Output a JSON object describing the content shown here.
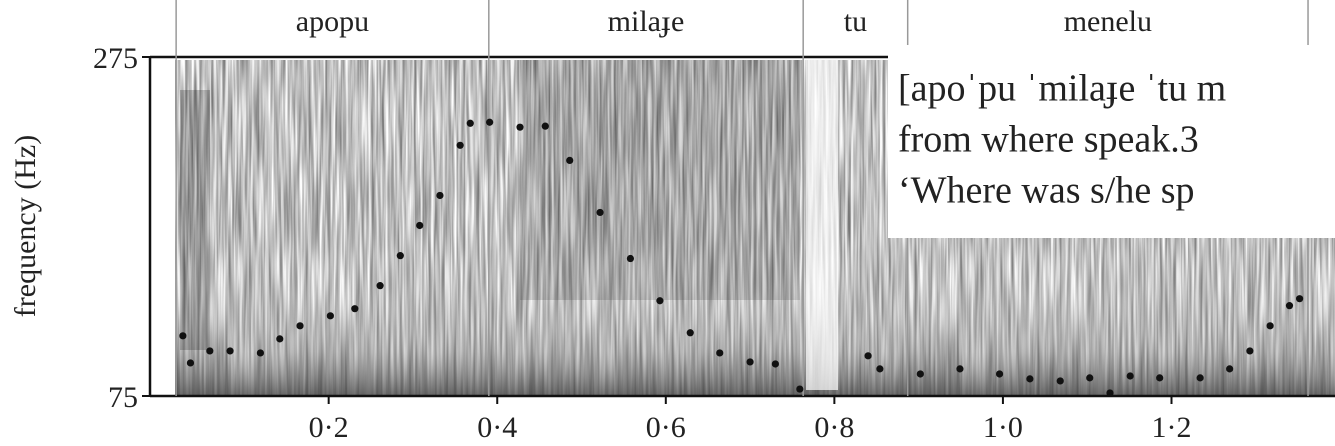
{
  "chart_data": {
    "type": "scatter",
    "ylabel": "frequency (Hz)",
    "words": [
      "apopu",
      "milaɟe",
      "tu",
      "menelu"
    ],
    "boundaries": [
      0.019,
      0.39,
      0.763,
      0.887,
      1.362
    ],
    "annotation": [
      "[apoˈpu ˈmilaɟe ˈtu m",
      "from where speak.3",
      "‘Where was s/he sp"
    ],
    "color": "#111111",
    "x": [
      0.027,
      0.036,
      0.059,
      0.083,
      0.119,
      0.142,
      0.166,
      0.202,
      0.231,
      0.261,
      0.285,
      0.308,
      0.332,
      0.356,
      0.368,
      0.391,
      0.427,
      0.457,
      0.486,
      0.522,
      0.558,
      0.593,
      0.629,
      0.664,
      0.7,
      0.73,
      0.759,
      0.84,
      0.854,
      0.902,
      0.949,
      0.996,
      1.032,
      1.068,
      1.103,
      1.127,
      1.151,
      1.186,
      1.234,
      1.269,
      1.293,
      1.317,
      1.34,
      1.352
    ],
    "values": [
      110.5,
      94.5,
      101.6,
      101.6,
      100.4,
      108.7,
      116.4,
      122.3,
      126.5,
      140.1,
      157.8,
      175.6,
      193.3,
      222.9,
      235.9,
      236.5,
      233.6,
      234.2,
      214.0,
      183.3,
      156.1,
      131.2,
      112.3,
      100.4,
      95.1,
      93.9,
      79.1,
      98.7,
      91.0,
      88.0,
      91.0,
      88.0,
      85.1,
      83.9,
      85.7,
      76.8,
      86.8,
      85.7,
      85.7,
      91.0,
      101.6,
      116.4,
      128.3,
      132.4
    ],
    "xlim": [
      -0.012,
      1.394
    ],
    "xticks": [
      {
        "value": 0.2,
        "label": "0·2"
      },
      {
        "value": 0.4,
        "label": "0·4"
      },
      {
        "value": 0.6,
        "label": "0·6"
      },
      {
        "value": 0.8,
        "label": "0·8"
      },
      {
        "value": 1.0,
        "label": "1·0"
      },
      {
        "value": 1.2,
        "label": "1·2"
      }
    ],
    "ylim": [
      75,
      275
    ],
    "yticks": [
      75,
      275
    ]
  }
}
